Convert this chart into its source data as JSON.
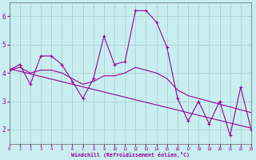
{
  "xlabel": "Windchill (Refroidissement éolien,°C)",
  "bg_color": "#c8eef0",
  "line_color": "#990099",
  "grid_color": "#aacccc",
  "xlim": [
    0,
    23
  ],
  "ylim": [
    1.5,
    6.5
  ],
  "yticks": [
    2,
    3,
    4,
    5,
    6
  ],
  "xticks": [
    0,
    1,
    2,
    3,
    4,
    5,
    6,
    7,
    8,
    9,
    10,
    11,
    12,
    13,
    14,
    15,
    16,
    17,
    18,
    19,
    20,
    21,
    22,
    23
  ],
  "series1_x": [
    0,
    1,
    2,
    3,
    4,
    5,
    6,
    7,
    8,
    9,
    10,
    11,
    12,
    13,
    14,
    15,
    16,
    17,
    18,
    19,
    20,
    21,
    22,
    23
  ],
  "series1_y": [
    4.1,
    4.3,
    3.6,
    4.6,
    4.6,
    4.3,
    3.7,
    3.1,
    3.8,
    5.3,
    4.3,
    4.4,
    6.2,
    6.2,
    5.8,
    4.9,
    3.1,
    2.3,
    3.0,
    2.2,
    3.0,
    1.8,
    3.5,
    2.0
  ],
  "trend_x": [
    0,
    23
  ],
  "trend_y": [
    4.15,
    2.05
  ],
  "smooth_x": [
    0,
    1,
    2,
    3,
    4,
    5,
    6,
    7,
    8,
    9,
    10,
    11,
    12,
    13,
    14,
    15,
    16,
    17,
    18,
    19,
    20,
    21,
    22,
    23
  ],
  "smooth_y": [
    4.1,
    4.2,
    4.0,
    4.1,
    4.1,
    4.0,
    3.8,
    3.6,
    3.7,
    3.9,
    3.9,
    4.0,
    4.2,
    4.1,
    4.0,
    3.8,
    3.4,
    3.2,
    3.1,
    3.0,
    2.9,
    2.8,
    2.7,
    2.6
  ]
}
